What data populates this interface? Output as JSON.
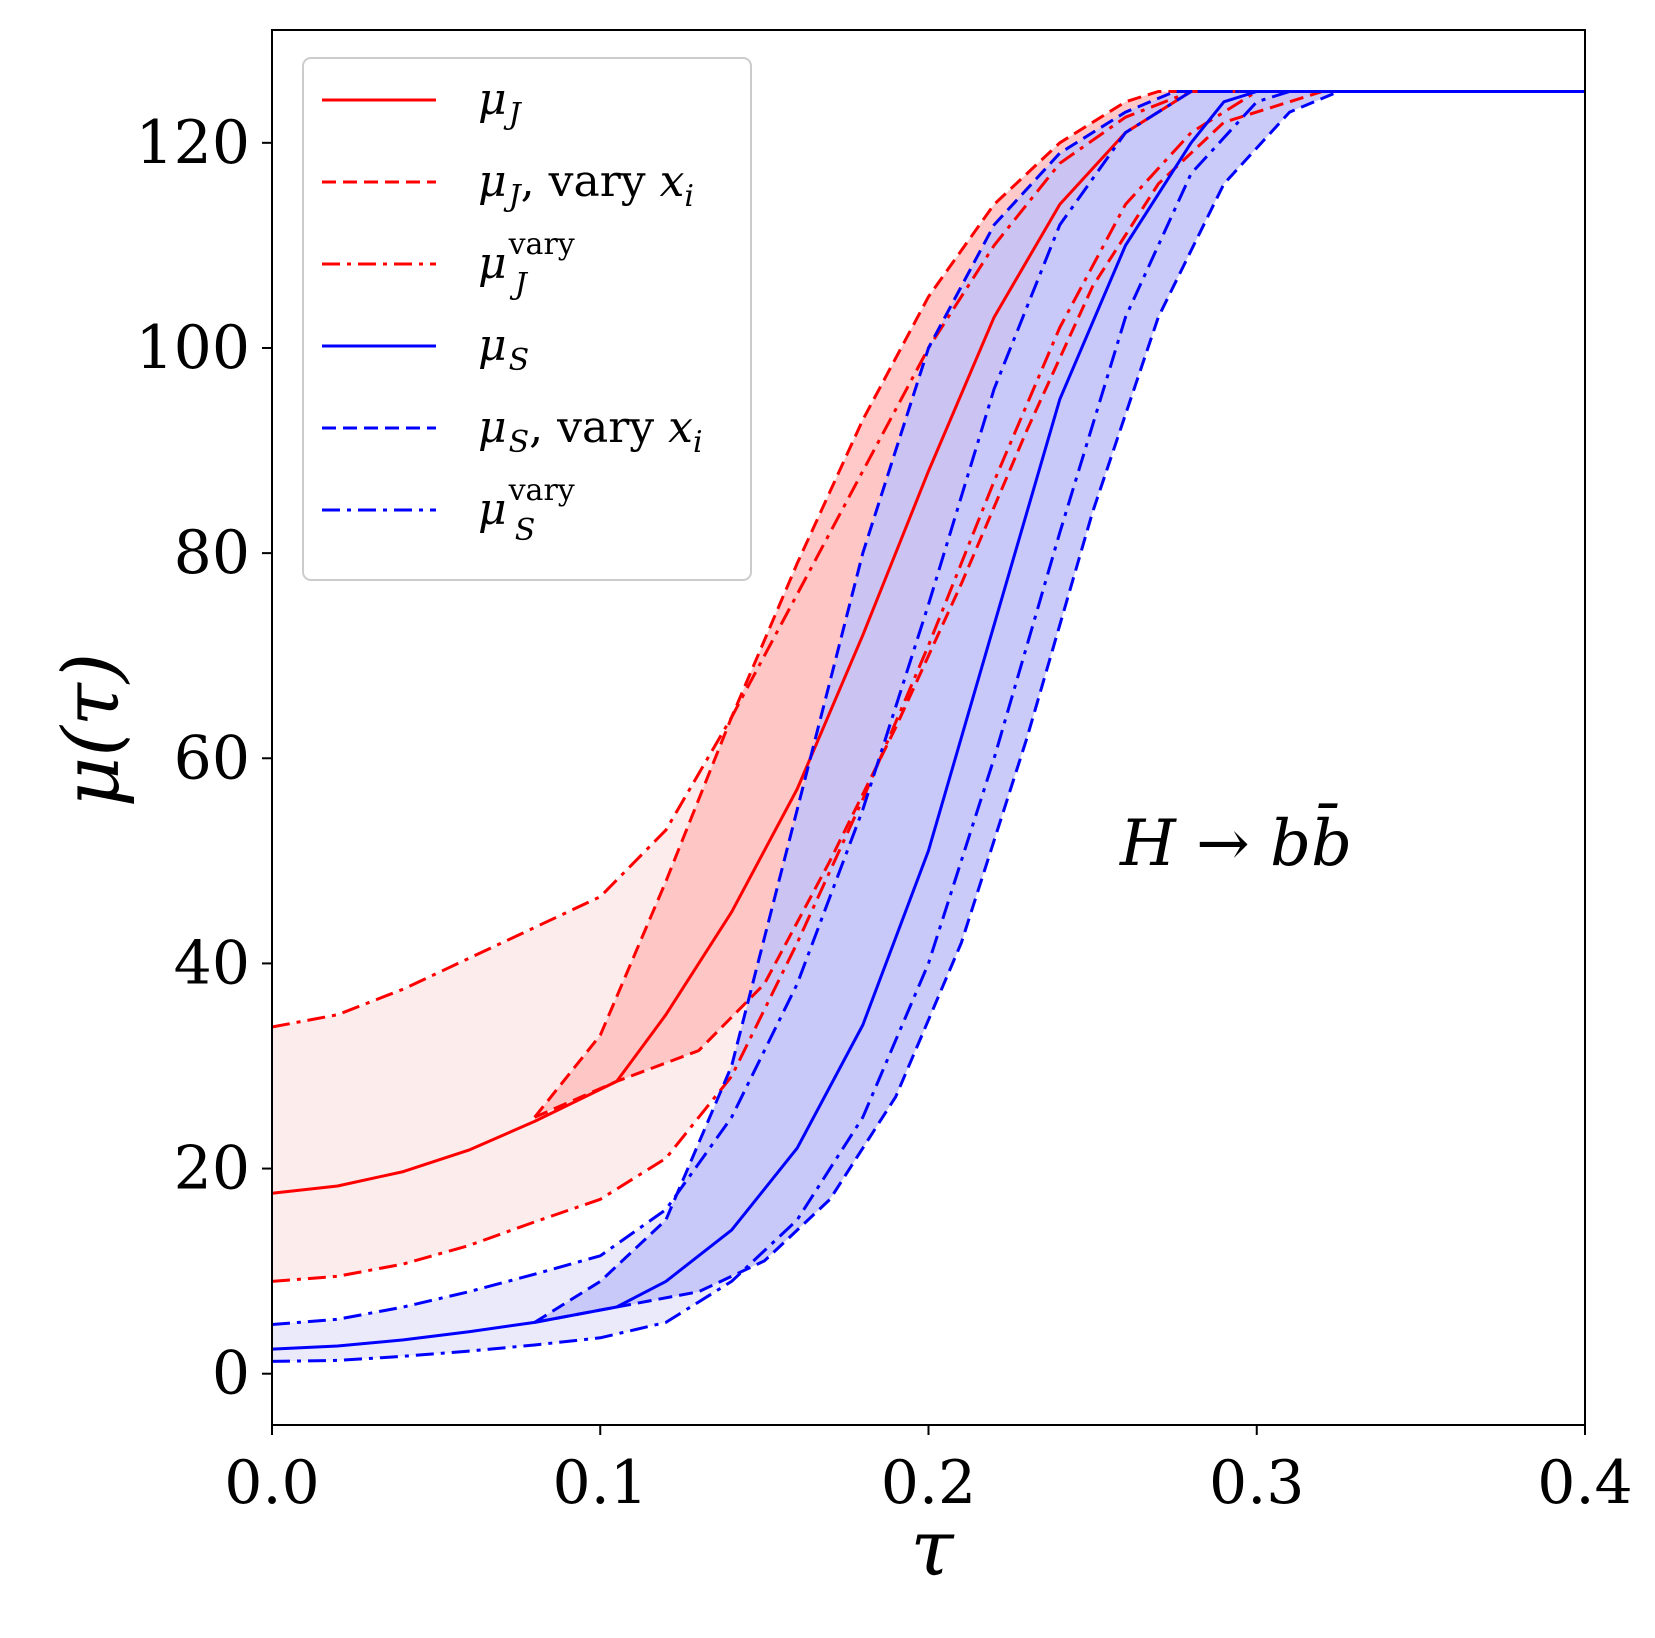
{
  "chart_data": {
    "type": "line",
    "title": "",
    "xlabel": "τ",
    "ylabel": "μ(τ)",
    "xlim": [
      0.0,
      0.4
    ],
    "ylim": [
      -5,
      131
    ],
    "xticks": [
      0.0,
      0.1,
      0.2,
      0.3,
      0.4
    ],
    "xtick_labels": [
      "0.0",
      "0.1",
      "0.2",
      "0.3",
      "0.4"
    ],
    "yticks": [
      0,
      20,
      40,
      60,
      80,
      100,
      120
    ],
    "ytick_labels": [
      "0",
      "20",
      "40",
      "60",
      "80",
      "100",
      "120"
    ],
    "grid": false,
    "legend_position": "top-left",
    "annotation": {
      "text": "H → bb̄",
      "x": 0.3,
      "y": 51
    },
    "colors": {
      "red": "#ff0000",
      "blue": "#0000ff",
      "red_band_light": "#fdecec",
      "red_band": "#ffc0c0",
      "blue_band_light": "#eaeafb",
      "blue_band": "#c2c2f8"
    },
    "series": [
      {
        "name": "μ_J",
        "legend": [
          "μ",
          "J",
          ""
        ],
        "color": "#ff0000",
        "style": "solid",
        "points": [
          [
            0,
            17.6
          ],
          [
            0.02,
            18.3
          ],
          [
            0.04,
            19.7
          ],
          [
            0.06,
            21.8
          ],
          [
            0.08,
            24.6
          ],
          [
            0.105,
            28.5
          ],
          [
            0.12,
            35
          ],
          [
            0.14,
            45
          ],
          [
            0.16,
            57
          ],
          [
            0.18,
            72
          ],
          [
            0.2,
            88
          ],
          [
            0.22,
            103
          ],
          [
            0.24,
            114
          ],
          [
            0.26,
            121
          ],
          [
            0.28,
            125
          ],
          [
            0.4,
            125
          ]
        ]
      },
      {
        "name": "μ_J, vary x_i (upper)",
        "legend": [
          "μ",
          "J",
          ", vary x",
          "i"
        ],
        "color": "#ff0000",
        "style": "dashed",
        "points": [
          [
            0.08,
            25
          ],
          [
            0.1,
            33
          ],
          [
            0.12,
            48
          ],
          [
            0.14,
            64
          ],
          [
            0.16,
            79
          ],
          [
            0.18,
            93
          ],
          [
            0.2,
            105
          ],
          [
            0.22,
            114
          ],
          [
            0.24,
            120
          ],
          [
            0.26,
            124
          ],
          [
            0.27,
            125
          ],
          [
            0.4,
            125
          ]
        ]
      },
      {
        "name": "μ_J, vary x_i (lower)",
        "color": "#ff0000",
        "style": "dashed",
        "points": [
          [
            0.08,
            25
          ],
          [
            0.105,
            28.5
          ],
          [
            0.13,
            31.5
          ],
          [
            0.15,
            38
          ],
          [
            0.17,
            50
          ],
          [
            0.19,
            63
          ],
          [
            0.21,
            77
          ],
          [
            0.23,
            92
          ],
          [
            0.25,
            106
          ],
          [
            0.27,
            116
          ],
          [
            0.29,
            122
          ],
          [
            0.32,
            125
          ],
          [
            0.4,
            125
          ]
        ]
      },
      {
        "name": "μ_J^vary (upper)",
        "legend": [
          "μ",
          "J",
          "vary"
        ],
        "color": "#ff0000",
        "style": "dashdot",
        "points": [
          [
            0,
            33.8
          ],
          [
            0.02,
            35
          ],
          [
            0.04,
            37.5
          ],
          [
            0.06,
            40.5
          ],
          [
            0.08,
            43.5
          ],
          [
            0.1,
            46.5
          ],
          [
            0.12,
            53
          ],
          [
            0.14,
            64
          ],
          [
            0.16,
            76
          ],
          [
            0.18,
            88
          ],
          [
            0.2,
            100
          ],
          [
            0.22,
            110
          ],
          [
            0.24,
            118
          ],
          [
            0.26,
            122.5
          ],
          [
            0.28,
            125
          ],
          [
            0.4,
            125
          ]
        ]
      },
      {
        "name": "μ_J^vary (lower)",
        "color": "#ff0000",
        "style": "dashdot",
        "points": [
          [
            0,
            9
          ],
          [
            0.02,
            9.5
          ],
          [
            0.04,
            10.7
          ],
          [
            0.06,
            12.5
          ],
          [
            0.08,
            14.8
          ],
          [
            0.1,
            17
          ],
          [
            0.12,
            21
          ],
          [
            0.14,
            29
          ],
          [
            0.16,
            42
          ],
          [
            0.18,
            56
          ],
          [
            0.2,
            71
          ],
          [
            0.22,
            87
          ],
          [
            0.24,
            102
          ],
          [
            0.26,
            114
          ],
          [
            0.28,
            121
          ],
          [
            0.3,
            125
          ],
          [
            0.4,
            125
          ]
        ]
      },
      {
        "name": "μ_S",
        "legend": [
          "μ",
          "S",
          ""
        ],
        "color": "#0000ff",
        "style": "solid",
        "points": [
          [
            0,
            2.4
          ],
          [
            0.02,
            2.7
          ],
          [
            0.04,
            3.3
          ],
          [
            0.06,
            4.1
          ],
          [
            0.08,
            5
          ],
          [
            0.105,
            6.5
          ],
          [
            0.12,
            9
          ],
          [
            0.14,
            14
          ],
          [
            0.16,
            22
          ],
          [
            0.18,
            34
          ],
          [
            0.2,
            51
          ],
          [
            0.22,
            73
          ],
          [
            0.24,
            95
          ],
          [
            0.26,
            110
          ],
          [
            0.28,
            120
          ],
          [
            0.29,
            124
          ],
          [
            0.3,
            125
          ],
          [
            0.4,
            125
          ]
        ]
      },
      {
        "name": "μ_S, vary x_i (upper)",
        "legend": [
          "μ",
          "S",
          ", vary x",
          "i"
        ],
        "color": "#0000ff",
        "style": "dashed",
        "points": [
          [
            0.08,
            5
          ],
          [
            0.1,
            9
          ],
          [
            0.12,
            15
          ],
          [
            0.14,
            30
          ],
          [
            0.16,
            55
          ],
          [
            0.18,
            80
          ],
          [
            0.2,
            100
          ],
          [
            0.22,
            112
          ],
          [
            0.24,
            119
          ],
          [
            0.26,
            123
          ],
          [
            0.275,
            125
          ],
          [
            0.4,
            125
          ]
        ]
      },
      {
        "name": "μ_S, vary x_i (lower)",
        "color": "#0000ff",
        "style": "dashed",
        "points": [
          [
            0.08,
            5
          ],
          [
            0.105,
            6.5
          ],
          [
            0.13,
            8
          ],
          [
            0.15,
            11
          ],
          [
            0.17,
            17
          ],
          [
            0.19,
            27
          ],
          [
            0.21,
            42
          ],
          [
            0.23,
            62
          ],
          [
            0.25,
            84
          ],
          [
            0.27,
            103
          ],
          [
            0.29,
            116
          ],
          [
            0.31,
            123
          ],
          [
            0.325,
            125
          ],
          [
            0.4,
            125
          ]
        ]
      },
      {
        "name": "μ_S^vary (upper)",
        "legend": [
          "μ",
          "S",
          "vary"
        ],
        "color": "#0000ff",
        "style": "dashdot",
        "points": [
          [
            0,
            4.8
          ],
          [
            0.02,
            5.3
          ],
          [
            0.04,
            6.5
          ],
          [
            0.06,
            8
          ],
          [
            0.08,
            9.7
          ],
          [
            0.1,
            11.5
          ],
          [
            0.12,
            16
          ],
          [
            0.14,
            25
          ],
          [
            0.16,
            38
          ],
          [
            0.18,
            55
          ],
          [
            0.2,
            75
          ],
          [
            0.22,
            96
          ],
          [
            0.24,
            112
          ],
          [
            0.26,
            121
          ],
          [
            0.28,
            125
          ],
          [
            0.4,
            125
          ]
        ]
      },
      {
        "name": "μ_S^vary (lower)",
        "color": "#0000ff",
        "style": "dashdot",
        "points": [
          [
            0,
            1.2
          ],
          [
            0.02,
            1.3
          ],
          [
            0.04,
            1.7
          ],
          [
            0.06,
            2.2
          ],
          [
            0.08,
            2.8
          ],
          [
            0.1,
            3.5
          ],
          [
            0.12,
            5
          ],
          [
            0.14,
            9
          ],
          [
            0.16,
            15
          ],
          [
            0.18,
            25
          ],
          [
            0.2,
            40
          ],
          [
            0.22,
            60
          ],
          [
            0.24,
            82
          ],
          [
            0.26,
            103
          ],
          [
            0.28,
            117
          ],
          [
            0.3,
            124
          ],
          [
            0.31,
            125
          ],
          [
            0.4,
            125
          ]
        ]
      }
    ],
    "bands": [
      {
        "name": "μ_J^vary band",
        "upper": "μ_J^vary (upper)",
        "lower": "μ_J^vary (lower)",
        "color": "#fdecec"
      },
      {
        "name": "μ_J vary x_i band",
        "upper": "μ_J, vary x_i (upper)",
        "lower": "μ_J, vary x_i (lower)",
        "color": "#ffc0c0"
      },
      {
        "name": "μ_S^vary band",
        "upper": "μ_S^vary (upper)",
        "lower": "μ_S^vary (lower)",
        "color": "#eaeafb"
      },
      {
        "name": "μ_S vary x_i band",
        "upper": "μ_S, vary x_i (upper)",
        "lower": "μ_S, vary x_i (lower)",
        "color": "#c2c2f8"
      }
    ]
  }
}
